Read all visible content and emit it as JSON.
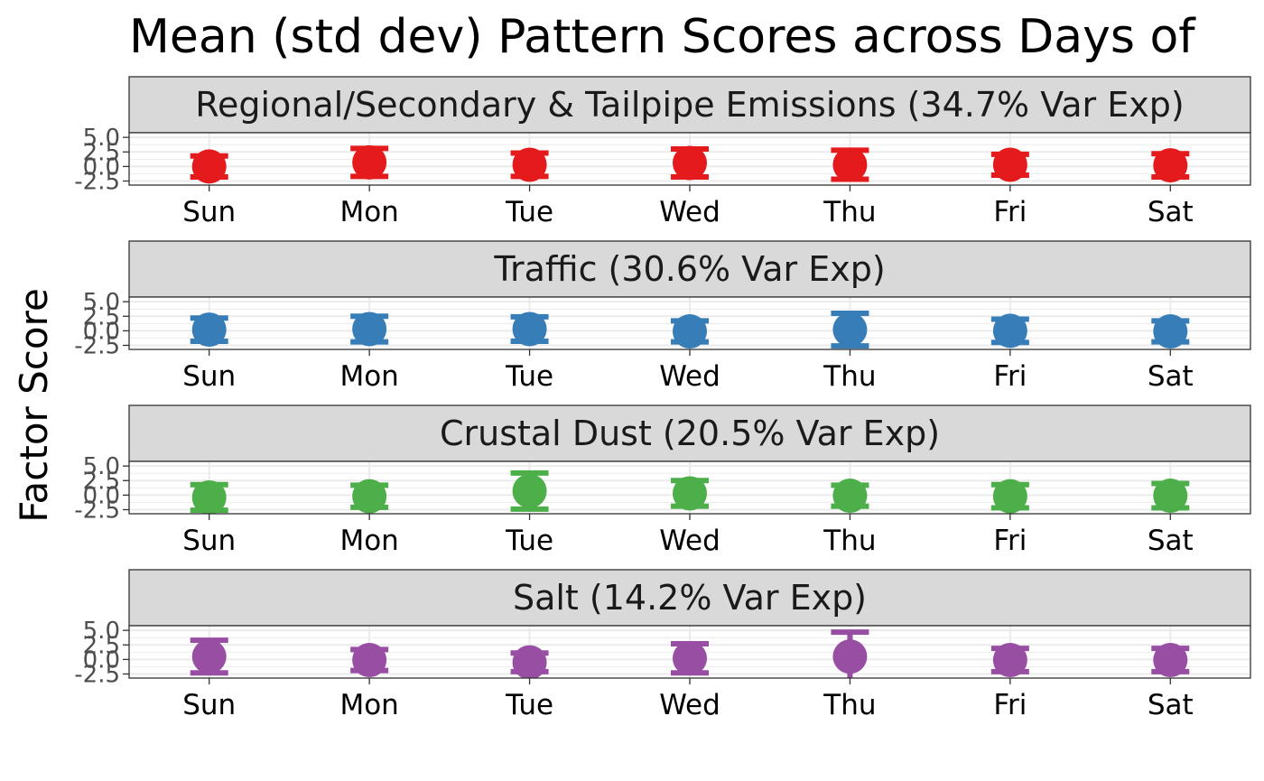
{
  "chart_data": {
    "type": "scatter",
    "title": "Mean (std dev) Pattern Scores across Days of",
    "ylabel": "Factor Score",
    "xlabel": "",
    "categories": [
      "Sun",
      "Mon",
      "Tue",
      "Wed",
      "Thu",
      "Fri",
      "Sat"
    ],
    "y_ticks": [
      -2.5,
      0.0,
      2.5,
      5.0
    ],
    "y_tick_labels": [
      "-2.5",
      "0.0",
      "2.5",
      "5.0"
    ],
    "ylim": [
      -3.2,
      5.8
    ],
    "grid": true,
    "legend": "none",
    "panels": [
      {
        "label": "Regional/Secondary & Tailpipe Emissions (34.7% Var Exp)",
        "color": "#E41A1C",
        "mean": [
          0.0,
          0.7,
          0.3,
          0.6,
          0.3,
          0.3,
          0.2
        ],
        "sd": [
          1.8,
          2.4,
          2.0,
          2.4,
          2.5,
          1.8,
          2.0
        ]
      },
      {
        "label": "Traffic (30.6% Var Exp)",
        "color": "#377EB8",
        "mean": [
          0.2,
          0.3,
          0.3,
          -0.1,
          0.2,
          0.0,
          -0.1
        ],
        "sd": [
          2.0,
          2.2,
          2.1,
          1.8,
          2.8,
          2.0,
          1.8
        ]
      },
      {
        "label": "Crustal Dust (20.5% Var Exp)",
        "color": "#4DAF4A",
        "mean": [
          -0.4,
          -0.2,
          0.7,
          0.3,
          -0.1,
          -0.2,
          -0.1
        ],
        "sd": [
          2.2,
          1.9,
          3.1,
          2.2,
          1.8,
          2.0,
          2.1
        ]
      },
      {
        "label": "Salt (14.2% Var Exp)",
        "color": "#984EA3",
        "mean": [
          0.5,
          -0.1,
          -0.5,
          0.2,
          0.5,
          -0.1,
          -0.1
        ],
        "sd": [
          2.8,
          1.8,
          1.6,
          2.5,
          4.2,
          2.0,
          2.0
        ]
      }
    ]
  }
}
